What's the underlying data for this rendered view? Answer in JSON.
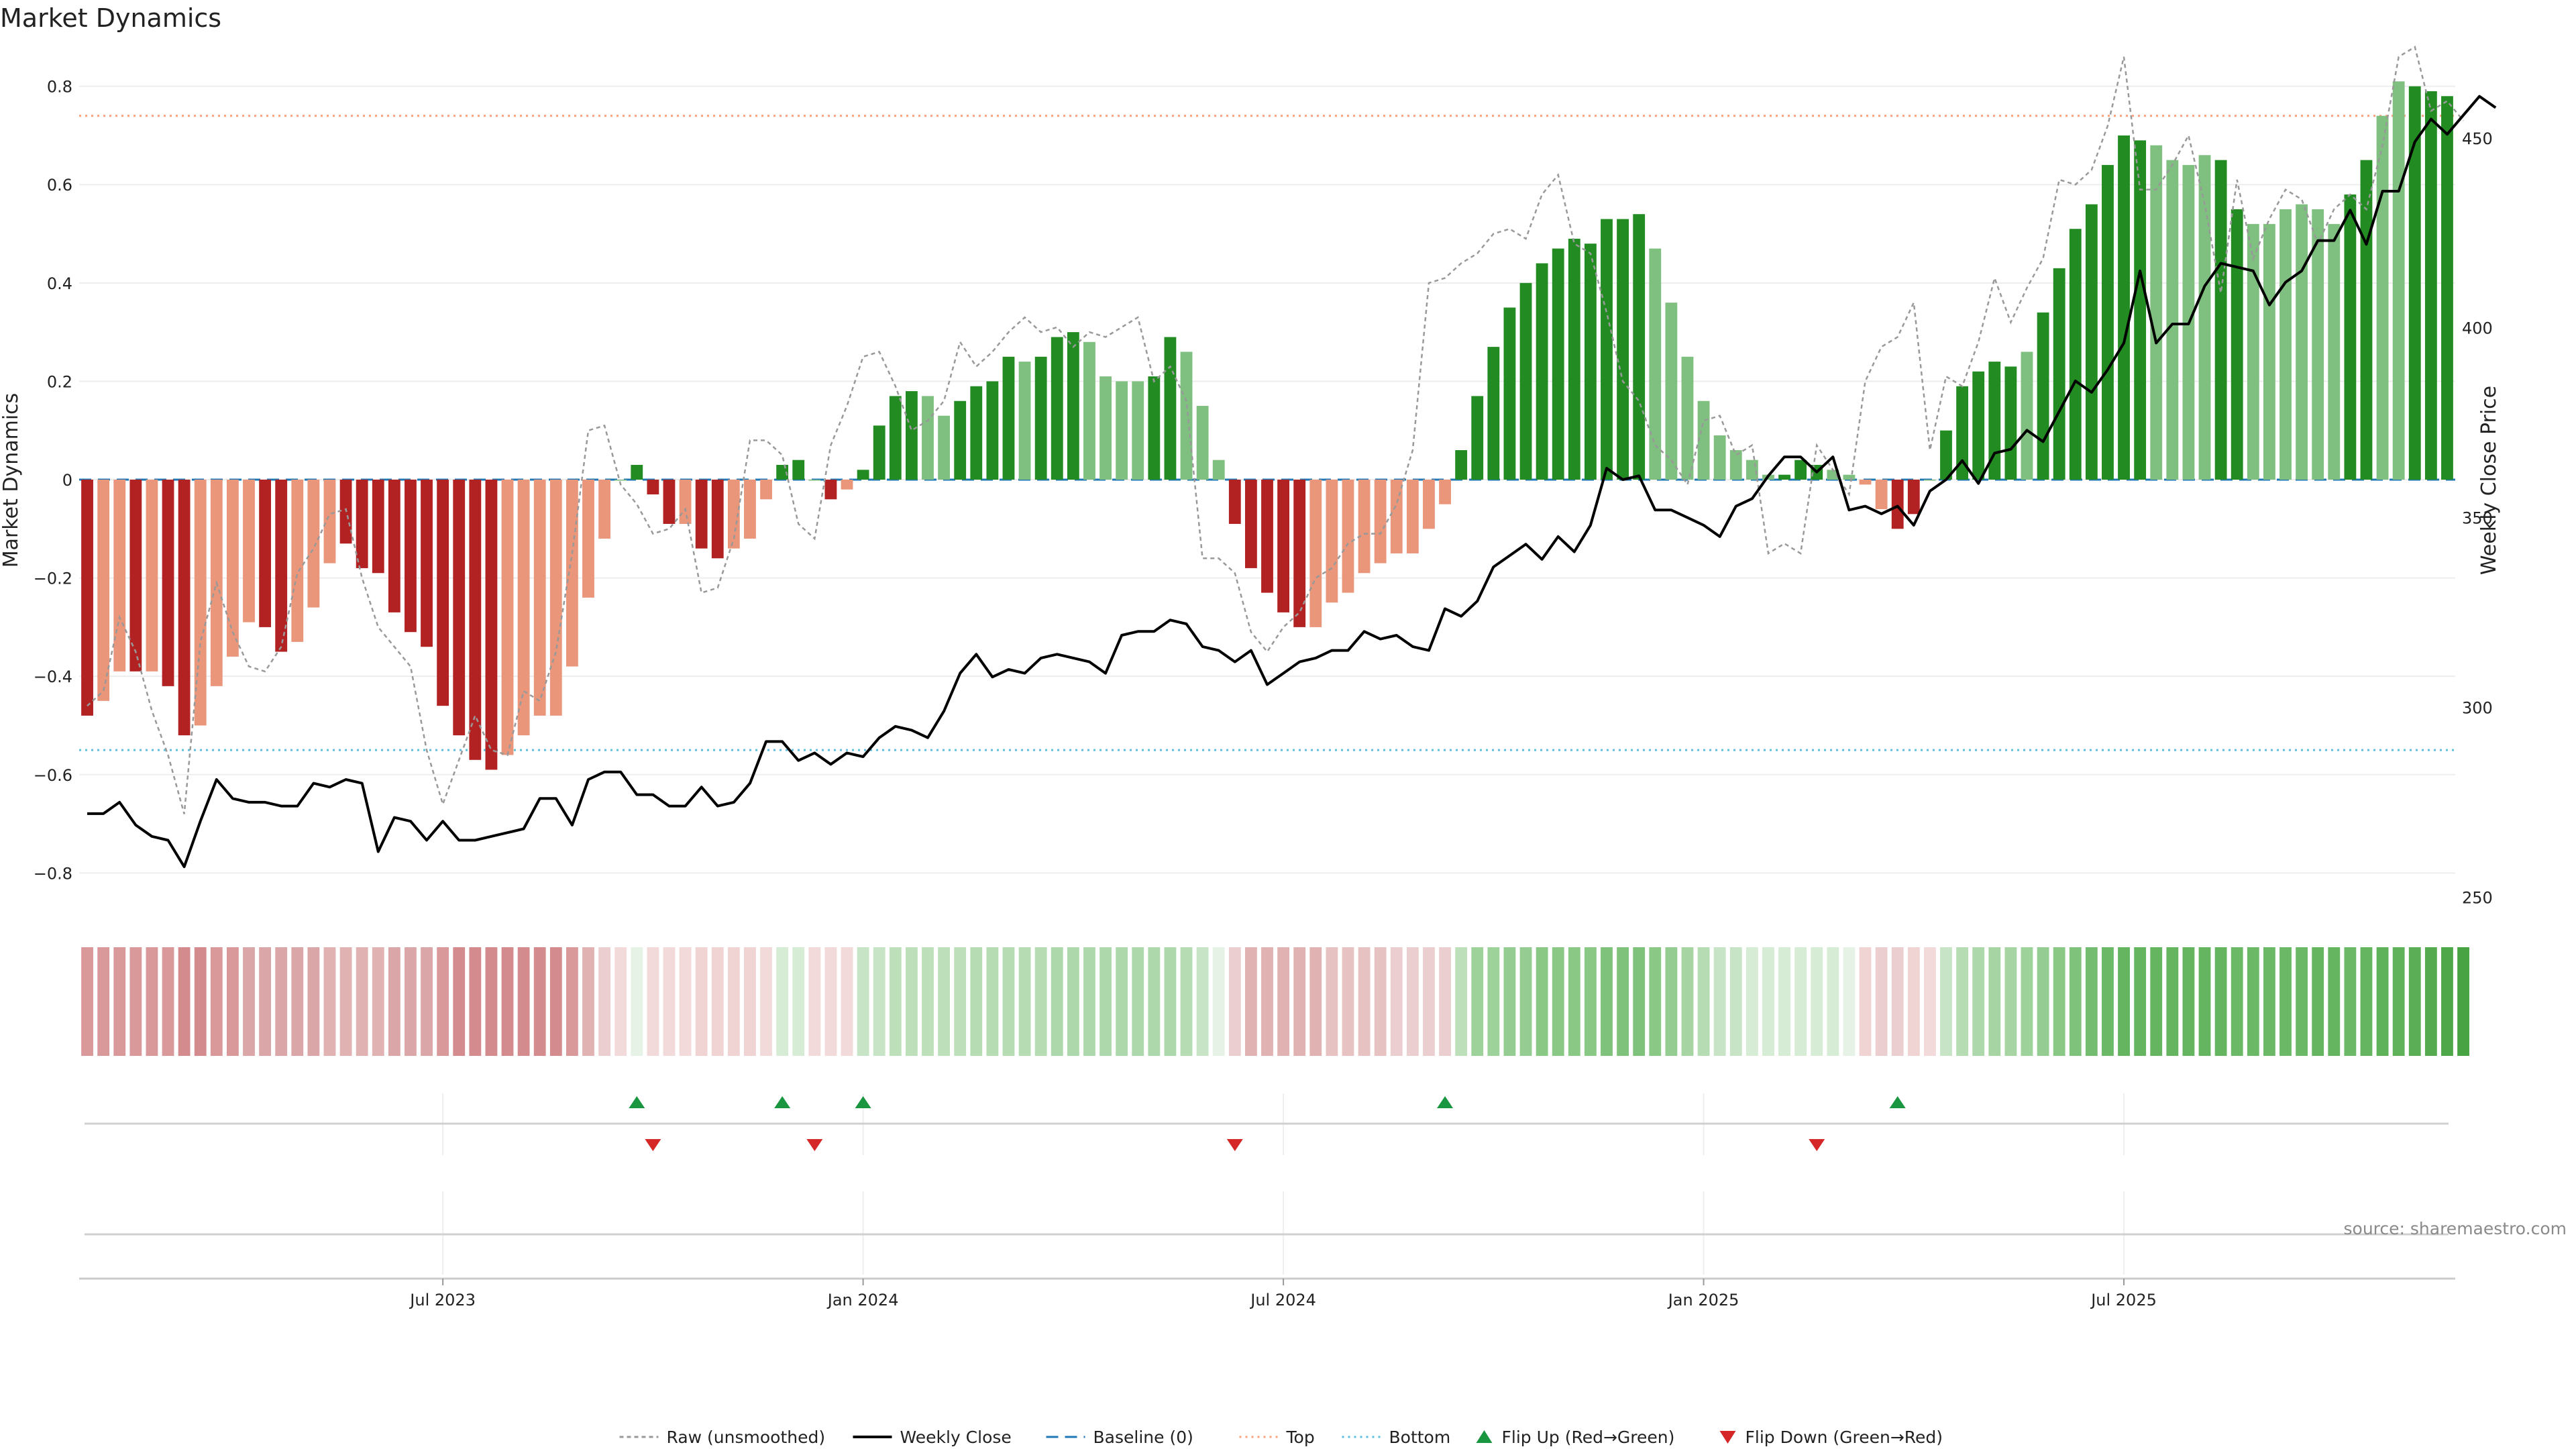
{
  "chart_data": {
    "type": "bar",
    "title": "Market Dynamics",
    "ylabel_left": "Market Dynamics",
    "ylabel_right": "Weekly Close Price",
    "ylim_left": [
      -0.88,
      0.88
    ],
    "ylim_right": [
      246,
      474
    ],
    "left_ticks": [
      {
        "v": 0.8,
        "label": "0.8"
      },
      {
        "v": 0.6,
        "label": "0.6"
      },
      {
        "v": 0.4,
        "label": "0.4"
      },
      {
        "v": 0.2,
        "label": "0.2"
      },
      {
        "v": 0,
        "label": "0"
      },
      {
        "v": -0.2,
        "label": "−0.2"
      },
      {
        "v": -0.4,
        "label": "−0.4"
      },
      {
        "v": -0.6,
        "label": "−0.6"
      },
      {
        "v": -0.8,
        "label": "−0.8"
      }
    ],
    "right_ticks": [
      {
        "v": 450,
        "label": "450"
      },
      {
        "v": 400,
        "label": "400"
      },
      {
        "v": 350,
        "label": "350"
      },
      {
        "v": 300,
        "label": "300"
      },
      {
        "v": 250,
        "label": "250"
      }
    ],
    "x_ticks": [
      {
        "week": 22,
        "label": "Jul 2023"
      },
      {
        "week": 48,
        "label": "Jan 2024"
      },
      {
        "week": 74,
        "label": "Jul 2024"
      },
      {
        "week": 100,
        "label": "Jan 2025"
      },
      {
        "week": 126,
        "label": "Jul 2025"
      }
    ],
    "top_line": 0.74,
    "bottom_line": -0.55,
    "bars": [
      -0.48,
      -0.45,
      -0.39,
      -0.39,
      -0.39,
      -0.42,
      -0.52,
      -0.5,
      -0.42,
      -0.36,
      -0.29,
      -0.3,
      -0.35,
      -0.33,
      -0.26,
      -0.17,
      -0.13,
      -0.18,
      -0.19,
      -0.27,
      -0.31,
      -0.34,
      -0.46,
      -0.52,
      -0.57,
      -0.59,
      -0.56,
      -0.52,
      -0.48,
      -0.48,
      -0.38,
      -0.24,
      -0.12,
      0,
      0.03,
      -0.03,
      -0.09,
      -0.09,
      -0.14,
      -0.16,
      -0.14,
      -0.12,
      -0.04,
      0.03,
      0.04,
      0,
      -0.04,
      -0.02,
      0.02,
      0.11,
      0.17,
      0.18,
      0.17,
      0.13,
      0.16,
      0.19,
      0.2,
      0.25,
      0.24,
      0.25,
      0.29,
      0.3,
      0.28,
      0.21,
      0.2,
      0.2,
      0.21,
      0.29,
      0.26,
      0.15,
      0.04,
      -0.09,
      -0.18,
      -0.23,
      -0.27,
      -0.3,
      -0.3,
      -0.25,
      -0.23,
      -0.19,
      -0.17,
      -0.15,
      -0.15,
      -0.1,
      -0.05,
      0.06,
      0.17,
      0.27,
      0.35,
      0.4,
      0.44,
      0.47,
      0.49,
      0.48,
      0.53,
      0.53,
      0.54,
      0.47,
      0.36,
      0.25,
      0.16,
      0.09,
      0.06,
      0.04,
      0.01,
      0.01,
      0.04,
      0.03,
      0.02,
      0.01,
      -0.01,
      -0.06,
      -0.1,
      -0.07,
      0,
      0.1,
      0.19,
      0.22,
      0.24,
      0.23,
      0.26,
      0.34,
      0.43,
      0.51,
      0.56,
      0.64,
      0.7,
      0.69,
      0.68,
      0.65,
      0.64,
      0.66,
      0.65,
      0.55,
      0.52,
      0.52,
      0.55,
      0.56,
      0.55,
      0.52,
      0.58,
      0.65,
      0.74,
      0.81,
      0.8,
      0.79,
      0.78
    ],
    "bar_shades": [
      "d",
      "l",
      "l",
      "d",
      "l",
      "d",
      "d",
      "l",
      "l",
      "l",
      "l",
      "d",
      "d",
      "l",
      "l",
      "l",
      "d",
      "d",
      "d",
      "d",
      "d",
      "d",
      "d",
      "d",
      "d",
      "d",
      "l",
      "l",
      "l",
      "l",
      "l",
      "l",
      "l",
      "l",
      "d",
      "d",
      "d",
      "l",
      "d",
      "d",
      "l",
      "l",
      "l",
      "d",
      "d",
      "l",
      "d",
      "l",
      "d",
      "d",
      "d",
      "d",
      "l",
      "l",
      "d",
      "d",
      "d",
      "d",
      "l",
      "d",
      "d",
      "d",
      "l",
      "l",
      "l",
      "l",
      "d",
      "d",
      "l",
      "l",
      "l",
      "d",
      "d",
      "d",
      "d",
      "d",
      "l",
      "l",
      "l",
      "l",
      "l",
      "l",
      "l",
      "l",
      "l",
      "d",
      "d",
      "d",
      "d",
      "d",
      "d",
      "d",
      "d",
      "d",
      "d",
      "d",
      "d",
      "l",
      "l",
      "l",
      "l",
      "l",
      "l",
      "l",
      "l",
      "d",
      "d",
      "d",
      "l",
      "l",
      "l",
      "l",
      "d",
      "d",
      "l",
      "d",
      "d",
      "d",
      "d",
      "d",
      "l",
      "d",
      "d",
      "d",
      "d",
      "d",
      "d",
      "d",
      "l",
      "l",
      "l",
      "l",
      "d",
      "d",
      "l",
      "l",
      "l",
      "l",
      "l",
      "l",
      "d",
      "d",
      "l",
      "l",
      "d",
      "d",
      "d",
      "d",
      "l",
      "l"
    ],
    "raw": [
      -0.46,
      -0.43,
      -0.28,
      -0.35,
      -0.47,
      -0.56,
      -0.68,
      -0.33,
      -0.21,
      -0.31,
      -0.38,
      -0.39,
      -0.34,
      -0.19,
      -0.14,
      -0.07,
      -0.06,
      -0.2,
      -0.3,
      -0.34,
      -0.38,
      -0.55,
      -0.66,
      -0.57,
      -0.48,
      -0.55,
      -0.56,
      -0.43,
      -0.45,
      -0.35,
      -0.15,
      0.1,
      0.11,
      -0.01,
      -0.05,
      -0.11,
      -0.1,
      -0.06,
      -0.23,
      -0.22,
      -0.12,
      0.08,
      0.08,
      0.05,
      -0.09,
      -0.12,
      0.07,
      0.15,
      0.25,
      0.26,
      0.19,
      0.1,
      0.12,
      0.16,
      0.28,
      0.23,
      0.26,
      0.3,
      0.33,
      0.3,
      0.31,
      0.27,
      0.3,
      0.29,
      0.31,
      0.33,
      0.2,
      0.23,
      0.16,
      -0.16,
      -0.16,
      -0.19,
      -0.31,
      -0.35,
      -0.3,
      -0.27,
      -0.2,
      -0.18,
      -0.13,
      -0.11,
      -0.11,
      -0.05,
      0.06,
      0.4,
      0.41,
      0.44,
      0.46,
      0.5,
      0.51,
      0.49,
      0.58,
      0.62,
      0.48,
      0.46,
      0.34,
      0.2,
      0.16,
      0.07,
      0.04,
      -0.01,
      0.12,
      0.13,
      0.05,
      0.07,
      -0.15,
      -0.13,
      -0.15,
      0.07,
      0.02,
      -0.03,
      0.2,
      0.27,
      0.29,
      0.36,
      0.06,
      0.21,
      0.19,
      0.28,
      0.41,
      0.32,
      0.39,
      0.45,
      0.61,
      0.6,
      0.63,
      0.72,
      0.86,
      0.59,
      0.59,
      0.64,
      0.7,
      0.56,
      0.38,
      0.61,
      0.45,
      0.53,
      0.59,
      0.57,
      0.48,
      0.55,
      0.58,
      0.55,
      0.68,
      0.86,
      0.88,
      0.75,
      0.77,
      0.73
    ],
    "weekly_close": [
      272,
      272,
      275,
      269,
      266,
      265,
      258,
      270,
      281,
      276,
      275,
      275,
      274,
      274,
      280,
      279,
      281,
      280,
      262,
      271,
      270,
      265,
      270,
      265,
      265,
      266,
      267,
      268,
      276,
      276,
      269,
      281,
      283,
      283,
      277,
      277,
      274,
      274,
      279,
      274,
      275,
      280,
      291,
      291,
      286,
      288,
      285,
      288,
      287,
      292,
      295,
      294,
      292,
      299,
      309,
      314,
      308,
      310,
      309,
      313,
      314,
      313,
      312,
      309,
      319,
      320,
      320,
      323,
      322,
      316,
      315,
      312,
      315,
      306,
      309,
      312,
      313,
      315,
      315,
      320,
      318,
      319,
      316,
      315,
      326,
      324,
      328,
      337,
      340,
      343,
      339,
      345,
      341,
      348,
      363,
      360,
      361,
      352,
      352,
      350,
      348,
      345,
      353,
      355,
      361,
      366,
      366,
      362,
      366,
      352,
      353,
      351,
      353,
      348,
      357,
      360,
      365,
      359,
      367,
      368,
      373,
      370,
      378,
      386,
      383,
      389,
      396,
      415,
      396,
      401,
      401,
      411,
      417,
      416,
      415,
      406,
      412,
      415,
      423,
      423,
      431,
      422,
      436,
      436,
      449,
      455,
      451,
      456,
      461,
      458
    ],
    "heat_colors": [
      "#d9999b",
      "#d9999b",
      "#d9999b",
      "#d9999b",
      "#d9999b",
      "#d9999b",
      "#d48b8e",
      "#d48b8e",
      "#d9999b",
      "#d9999b",
      "#dba6a7",
      "#dba6a7",
      "#dba6a7",
      "#dba6a7",
      "#dba6a7",
      "#e0b2b2",
      "#e0b2b2",
      "#e0b2b2",
      "#e0b2b2",
      "#dba6a7",
      "#dba6a7",
      "#dba6a7",
      "#d9999b",
      "#d48b8e",
      "#d48b8e",
      "#d48b8e",
      "#d48b8e",
      "#d48b8e",
      "#d48b8e",
      "#d48b8e",
      "#d9999b",
      "#e0b2b2",
      "#ebcfd0",
      "#f2dada",
      "#e7f2e6",
      "#f2dada",
      "#f2dada",
      "#f2dada",
      "#f0d3d3",
      "#f0d3d3",
      "#f0d3d3",
      "#f0d3d3",
      "#f2dada",
      "#d6ecd5",
      "#d6ecd5",
      "#f2dada",
      "#f2dada",
      "#f2dada",
      "#c7e5c6",
      "#c7e5c6",
      "#bde0bb",
      "#bde0bb",
      "#bde0bb",
      "#bde0bb",
      "#bde0bb",
      "#b5dcb3",
      "#b5dcb3",
      "#b5dcb3",
      "#b5dcb3",
      "#b5dcb3",
      "#add8ab",
      "#add8ab",
      "#add8ab",
      "#add8ab",
      "#add8ab",
      "#add8ab",
      "#add8ab",
      "#add8ab",
      "#b5dcb3",
      "#c7e5c6",
      "#e7f2e6",
      "#ebcfd0",
      "#e0b2b2",
      "#e0b2b2",
      "#e0b2b2",
      "#e0b2b2",
      "#e0b2b2",
      "#e7c2c2",
      "#e7c2c2",
      "#e7c2c2",
      "#e7c2c2",
      "#ebcfd0",
      "#ebcfd0",
      "#ebcfd0",
      "#ebcfd0",
      "#bde0bb",
      "#9ed29b",
      "#9ed29b",
      "#94cc91",
      "#94cc91",
      "#8ac886",
      "#8ac886",
      "#8ac886",
      "#8ac886",
      "#7fc27b",
      "#7fc27b",
      "#7fc27b",
      "#8ac886",
      "#94cc91",
      "#a6d5a3",
      "#b5dcb3",
      "#c7e5c6",
      "#c7e5c6",
      "#d6ecd5",
      "#d6ecd5",
      "#d6ecd5",
      "#d6ecd5",
      "#d6ecd5",
      "#d6ecd5",
      "#e7f2e6",
      "#f0d3d3",
      "#ebcfd0",
      "#ebcfd0",
      "#f0d3d3",
      "#f2dada",
      "#c7e5c6",
      "#b5dcb3",
      "#add8ab",
      "#a6d5a3",
      "#a6d5a3",
      "#9ed29b",
      "#94cc91",
      "#8ac886",
      "#7fc27b",
      "#74bd70",
      "#6bb867",
      "#65b560",
      "#65b560",
      "#65b560",
      "#65b560",
      "#65b560",
      "#65b560",
      "#65b560",
      "#6bb867",
      "#6bb867",
      "#6bb867",
      "#6bb867",
      "#6bb867",
      "#65b560",
      "#65b560",
      "#6bb867",
      "#65b560",
      "#5fb15a",
      "#5fb15a",
      "#5bad56",
      "#55aa50",
      "#4ea849",
      "#48a443"
    ],
    "flip_up_weeks": [
      34,
      43,
      48,
      84,
      112
    ],
    "flip_down_weeks": [
      35,
      45,
      71,
      107
    ],
    "colors": {
      "bar_red_dark": "#b22222",
      "bar_red_light": "#e9967a",
      "bar_green_dark": "#228b22",
      "bar_green_light": "#7fbf7f",
      "close_line": "#000000",
      "raw_line": "#999999",
      "baseline": "#1f77b4",
      "top_line": "#ffa07a",
      "bottom_line": "#5bc0de",
      "flip_up": "#1a9641",
      "flip_down": "#d62728"
    },
    "legend": [
      {
        "label": "Raw (unsmoothed)",
        "kind": "raw"
      },
      {
        "label": "Weekly Close",
        "kind": "close"
      },
      {
        "label": "Baseline (0)",
        "kind": "baseline"
      },
      {
        "label": "Top",
        "kind": "top"
      },
      {
        "label": "Bottom",
        "kind": "bottom"
      },
      {
        "label": "Flip Up (Red→Green)",
        "kind": "up"
      },
      {
        "label": "Flip Down (Green→Red)",
        "kind": "down"
      }
    ],
    "legend_position": "bottom-center",
    "source": "source: sharemaestro.com"
  }
}
